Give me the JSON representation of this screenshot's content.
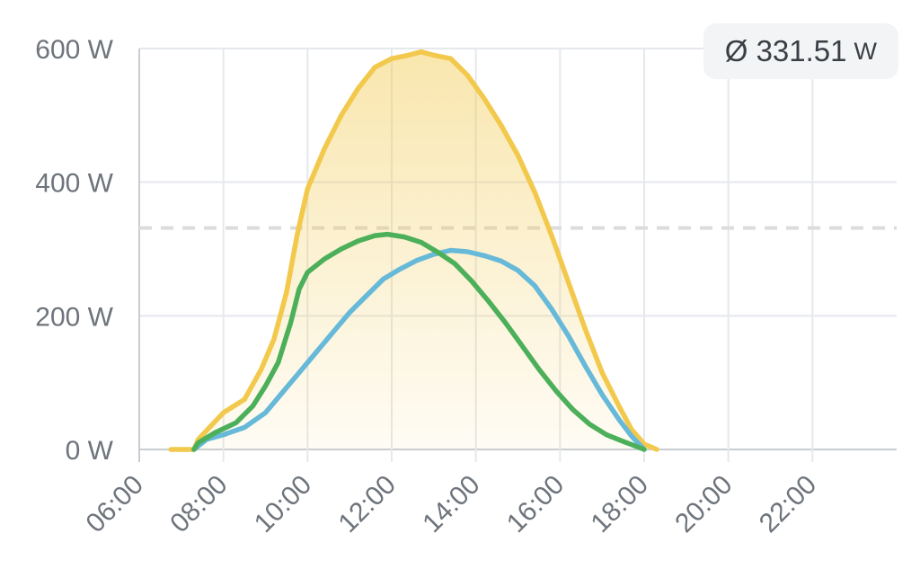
{
  "average_badge": {
    "value": "Ø 331.51",
    "unit": "W"
  },
  "chart_data": {
    "type": "area",
    "y_ticks": [
      "0 W",
      "200 W",
      "400 W",
      "600 W"
    ],
    "x_ticks": [
      "06:00",
      "08:00",
      "10:00",
      "12:00",
      "14:00",
      "16:00",
      "18:00",
      "20:00",
      "22:00"
    ],
    "xlim": [
      6,
      24
    ],
    "ylim": [
      0,
      600
    ],
    "grid": true,
    "average_line": 331.51,
    "colors": {
      "total": "#f2c94c",
      "string_a": "#4caf5a",
      "string_b": "#66b9d8"
    },
    "series": [
      {
        "key": "total",
        "filled": true,
        "points": [
          [
            6.75,
            0
          ],
          [
            7.3,
            0
          ],
          [
            7.4,
            15
          ],
          [
            7.7,
            35
          ],
          [
            8.0,
            55
          ],
          [
            8.5,
            75
          ],
          [
            8.9,
            120
          ],
          [
            9.2,
            165
          ],
          [
            9.5,
            235
          ],
          [
            9.75,
            320
          ],
          [
            10.0,
            390
          ],
          [
            10.4,
            450
          ],
          [
            10.8,
            500
          ],
          [
            11.2,
            540
          ],
          [
            11.6,
            572
          ],
          [
            12.0,
            585
          ],
          [
            12.4,
            590
          ],
          [
            12.7,
            595
          ],
          [
            13.0,
            590
          ],
          [
            13.4,
            585
          ],
          [
            13.8,
            560
          ],
          [
            14.2,
            525
          ],
          [
            14.6,
            485
          ],
          [
            15.0,
            440
          ],
          [
            15.4,
            385
          ],
          [
            15.8,
            320
          ],
          [
            16.2,
            250
          ],
          [
            16.6,
            180
          ],
          [
            17.0,
            115
          ],
          [
            17.4,
            65
          ],
          [
            17.7,
            30
          ],
          [
            18.0,
            8
          ],
          [
            18.3,
            0
          ]
        ]
      },
      {
        "key": "string_a",
        "filled": false,
        "points": [
          [
            7.3,
            0
          ],
          [
            7.4,
            10
          ],
          [
            7.8,
            25
          ],
          [
            8.3,
            40
          ],
          [
            8.7,
            65
          ],
          [
            9.0,
            95
          ],
          [
            9.3,
            130
          ],
          [
            9.6,
            190
          ],
          [
            9.8,
            240
          ],
          [
            10.0,
            265
          ],
          [
            10.4,
            285
          ],
          [
            10.8,
            300
          ],
          [
            11.2,
            312
          ],
          [
            11.6,
            320
          ],
          [
            11.9,
            322
          ],
          [
            12.3,
            318
          ],
          [
            12.7,
            310
          ],
          [
            13.1,
            295
          ],
          [
            13.5,
            278
          ],
          [
            13.9,
            252
          ],
          [
            14.3,
            222
          ],
          [
            14.7,
            190
          ],
          [
            15.1,
            155
          ],
          [
            15.5,
            120
          ],
          [
            15.9,
            88
          ],
          [
            16.3,
            60
          ],
          [
            16.7,
            38
          ],
          [
            17.1,
            22
          ],
          [
            17.5,
            12
          ],
          [
            17.8,
            5
          ],
          [
            18.0,
            0
          ]
        ]
      },
      {
        "key": "string_b",
        "filled": false,
        "points": [
          [
            7.3,
            0
          ],
          [
            7.6,
            15
          ],
          [
            8.0,
            22
          ],
          [
            8.5,
            33
          ],
          [
            9.0,
            55
          ],
          [
            9.4,
            85
          ],
          [
            9.8,
            115
          ],
          [
            10.2,
            145
          ],
          [
            10.6,
            175
          ],
          [
            11.0,
            205
          ],
          [
            11.4,
            230
          ],
          [
            11.8,
            255
          ],
          [
            12.2,
            270
          ],
          [
            12.6,
            283
          ],
          [
            13.0,
            292
          ],
          [
            13.4,
            298
          ],
          [
            13.8,
            296
          ],
          [
            14.2,
            290
          ],
          [
            14.6,
            282
          ],
          [
            15.0,
            268
          ],
          [
            15.4,
            245
          ],
          [
            15.8,
            210
          ],
          [
            16.2,
            170
          ],
          [
            16.6,
            125
          ],
          [
            17.0,
            82
          ],
          [
            17.4,
            45
          ],
          [
            17.7,
            20
          ],
          [
            18.0,
            0
          ]
        ]
      }
    ]
  }
}
